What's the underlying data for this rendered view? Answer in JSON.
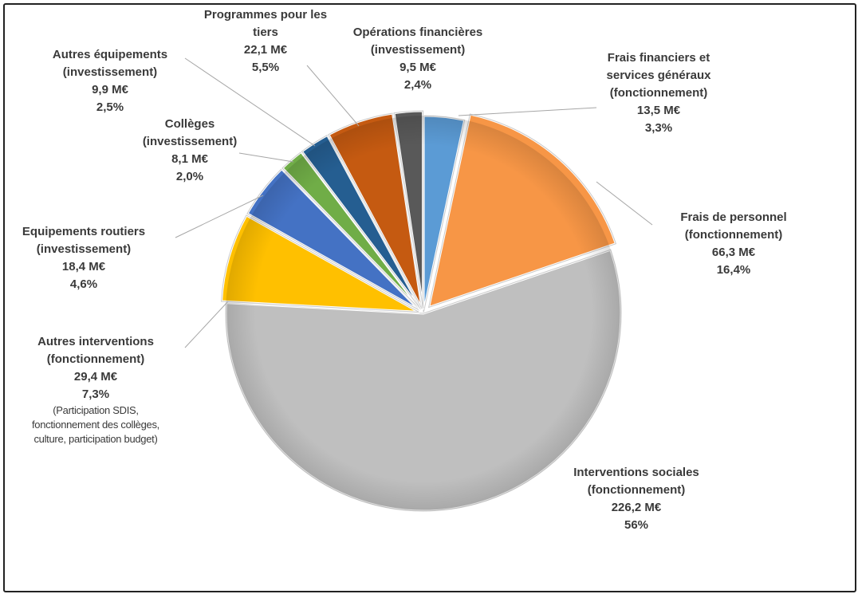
{
  "chart_data": {
    "type": "pie",
    "title": "",
    "unit": "M€",
    "slices": [
      {
        "name_lines": [
          "Frais financiers et",
          "services généraux",
          "(fonctionnement)"
        ],
        "value_label": "13,5 M€",
        "pct_label": "3,3%",
        "value": 13.5,
        "percent": 3.3,
        "color": "#5b9bd5"
      },
      {
        "name_lines": [
          "Frais de personnel",
          "(fonctionnement)"
        ],
        "value_label": "66,3 M€",
        "pct_label": "16,4%",
        "value": 66.3,
        "percent": 16.4,
        "color": "#f79646"
      },
      {
        "name_lines": [
          "Interventions  sociales",
          "(fonctionnement)"
        ],
        "value_label": "226,2 M€",
        "pct_label": "56%",
        "value": 226.2,
        "percent": 56,
        "color": "#bfbfbf"
      },
      {
        "name_lines": [
          "Autres  interventions",
          "(fonctionnement)"
        ],
        "value_label": "29,4 M€",
        "pct_label": "7,3%",
        "value": 29.4,
        "percent": 7.3,
        "color": "#ffc000",
        "note_lines": [
          "(Participation SDIS,",
          "fonctionnement des collèges,",
          "culture, participation budget)"
        ]
      },
      {
        "name_lines": [
          "Equipements routiers",
          "(investissement)"
        ],
        "value_label": "18,4 M€",
        "pct_label": "4,6%",
        "value": 18.4,
        "percent": 4.6,
        "color": "#4472c4"
      },
      {
        "name_lines": [
          "Collèges",
          "(investissement)"
        ],
        "value_label": "8,1 M€",
        "pct_label": "2,0%",
        "value": 8.1,
        "percent": 2.0,
        "color": "#70ad47"
      },
      {
        "name_lines": [
          "Autres  équipements",
          "(investissement)"
        ],
        "value_label": "9,9 M€",
        "pct_label": "2,5%",
        "value": 9.9,
        "percent": 2.5,
        "color": "#255e91"
      },
      {
        "name_lines": [
          "Programmes pour  les",
          "tiers"
        ],
        "value_label": "22,1 M€",
        "pct_label": "5,5%",
        "value": 22.1,
        "percent": 5.5,
        "color": "#c55a11"
      },
      {
        "name_lines": [
          "Opérations  financières",
          "(investissement)"
        ],
        "value_label": "9,5 M€",
        "pct_label": "2,4%",
        "value": 9.5,
        "percent": 2.4,
        "color": "#595959"
      }
    ]
  }
}
